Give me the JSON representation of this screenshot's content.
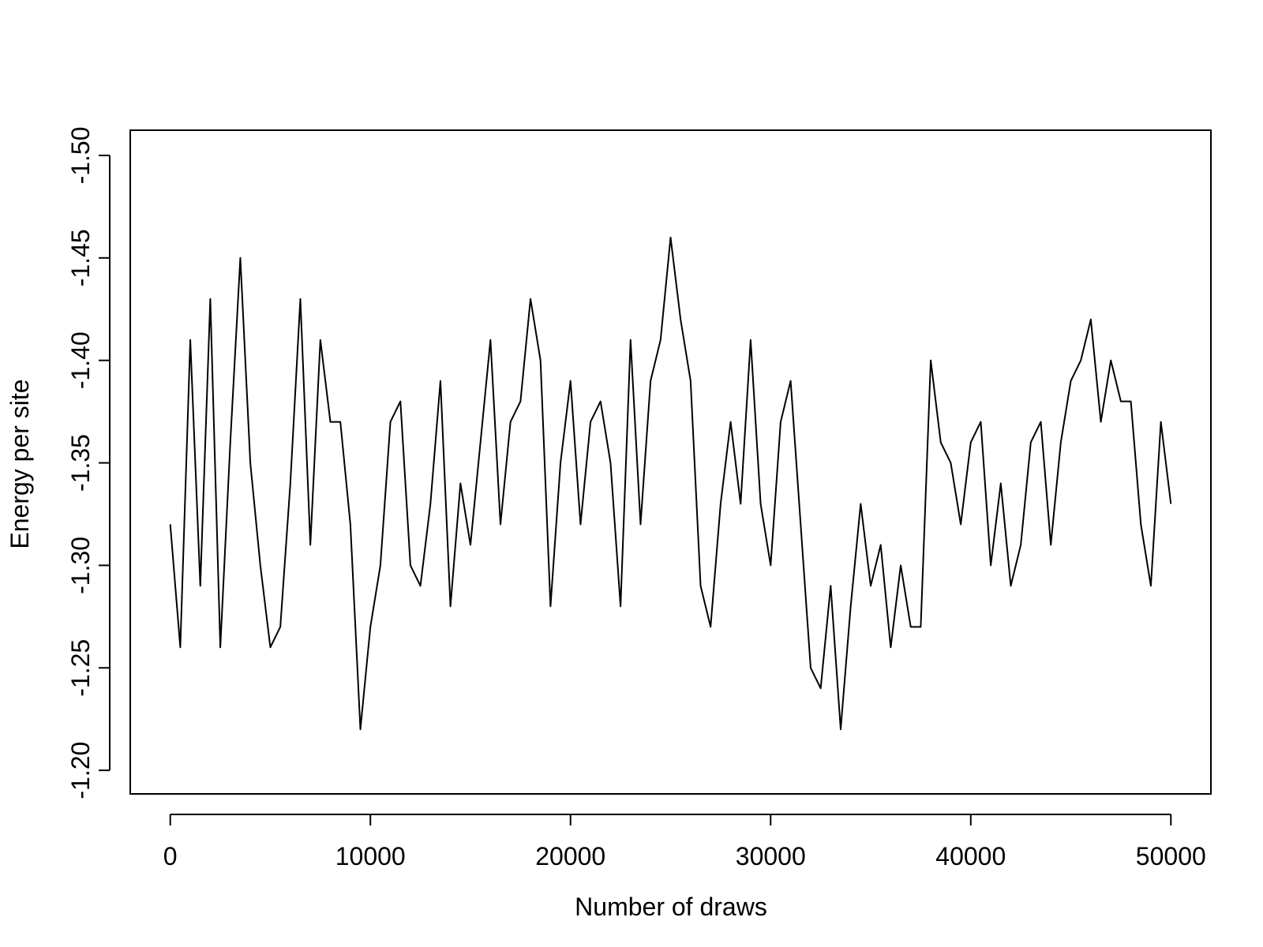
{
  "chart_data": {
    "type": "line",
    "x_label": "Number of draws",
    "y_label": "Energy per site",
    "x": [
      0,
      500,
      1000,
      1500,
      2000,
      2500,
      3000,
      3500,
      4000,
      4500,
      5000,
      5500,
      6000,
      6500,
      7000,
      7500,
      8000,
      8500,
      9000,
      9500,
      10000,
      10500,
      11000,
      11500,
      12000,
      12500,
      13000,
      13500,
      14000,
      14500,
      15000,
      15500,
      16000,
      16500,
      17000,
      17500,
      18000,
      18500,
      19000,
      19500,
      20000,
      20500,
      21000,
      21500,
      22000,
      22500,
      23000,
      23500,
      24000,
      24500,
      25000,
      25500,
      26000,
      26500,
      27000,
      27500,
      28000,
      28500,
      29000,
      29500,
      30000,
      30500,
      31000,
      31500,
      32000,
      32500,
      33000,
      33500,
      34000,
      34500,
      35000,
      35500,
      36000,
      36500,
      37000,
      37500,
      38000,
      38500,
      39000,
      39500,
      40000,
      40500,
      41000,
      41500,
      42000,
      42500,
      43000,
      43500,
      44000,
      44500,
      45000,
      45500,
      46000,
      46500,
      47000,
      47500,
      48000,
      48500,
      49000,
      49500,
      50000
    ],
    "series": [
      {
        "color": "#000000",
        "values": [
          -1.32,
          -1.26,
          -1.41,
          -1.29,
          -1.43,
          -1.26,
          -1.36,
          -1.45,
          -1.35,
          -1.3,
          -1.26,
          -1.27,
          -1.34,
          -1.43,
          -1.31,
          -1.41,
          -1.37,
          -1.37,
          -1.32,
          -1.22,
          -1.27,
          -1.3,
          -1.37,
          -1.38,
          -1.3,
          -1.29,
          -1.33,
          -1.39,
          -1.28,
          -1.34,
          -1.31,
          -1.36,
          -1.41,
          -1.32,
          -1.37,
          -1.38,
          -1.43,
          -1.4,
          -1.28,
          -1.35,
          -1.39,
          -1.32,
          -1.37,
          -1.38,
          -1.35,
          -1.28,
          -1.41,
          -1.32,
          -1.39,
          -1.41,
          -1.46,
          -1.42,
          -1.39,
          -1.29,
          -1.27,
          -1.33,
          -1.37,
          -1.33,
          -1.41,
          -1.33,
          -1.3,
          -1.37,
          -1.39,
          -1.32,
          -1.25,
          -1.24,
          -1.29,
          -1.22,
          -1.28,
          -1.33,
          -1.29,
          -1.31,
          -1.26,
          -1.3,
          -1.27,
          -1.27,
          -1.4,
          -1.36,
          -1.35,
          -1.32,
          -1.36,
          -1.37,
          -1.3,
          -1.34,
          -1.29,
          -1.31,
          -1.36,
          -1.37,
          -1.31,
          -1.36,
          -1.39,
          -1.4,
          -1.42,
          -1.37,
          -1.4,
          -1.38,
          -1.38,
          -1.32,
          -1.29,
          -1.37,
          -1.33
        ]
      }
    ],
    "xlim": [
      -2000,
      52000
    ],
    "ylim": [
      -1.1885,
      -1.5123
    ],
    "xticks": [
      0,
      10000,
      20000,
      30000,
      40000,
      50000
    ],
    "yticks": [
      {
        "value": -1.2,
        "label": "-1.20"
      },
      {
        "value": -1.25,
        "label": "-1.25"
      },
      {
        "value": -1.3,
        "label": "-1.30"
      },
      {
        "value": -1.35,
        "label": "-1.35"
      },
      {
        "value": -1.4,
        "label": "-1.40"
      },
      {
        "value": -1.45,
        "label": "-1.45"
      },
      {
        "value": -1.5,
        "label": "-1.50"
      }
    ]
  }
}
